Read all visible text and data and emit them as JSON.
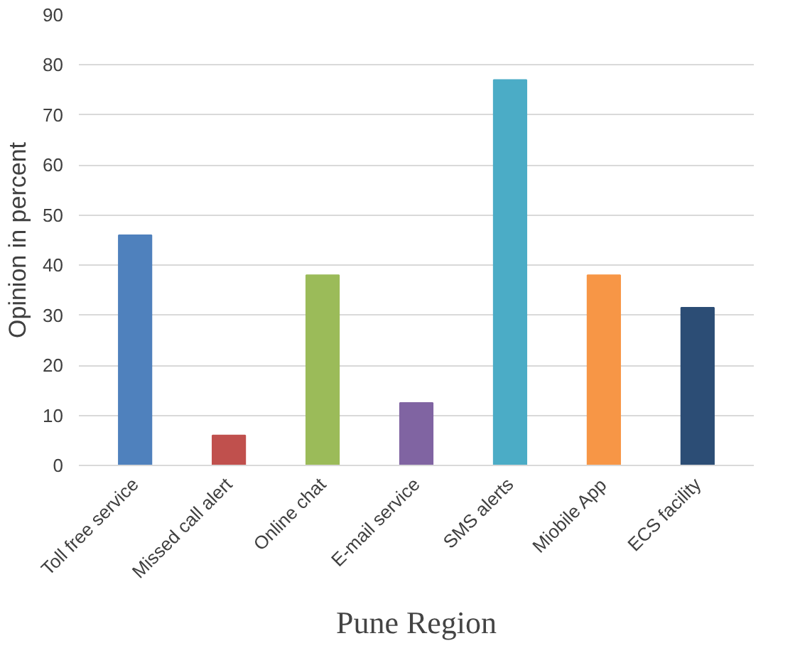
{
  "chart_data": {
    "type": "bar",
    "title": "Pune Region",
    "ylabel": "Opinion in percent",
    "categories": [
      "Toll free service",
      "Missed call alert",
      "Online chat",
      "E-mail service",
      "SMS alerts",
      "Miobile App",
      "ECS facility"
    ],
    "values": [
      46,
      6,
      38,
      12.5,
      77,
      38,
      31.5
    ],
    "colors": [
      "#4f81bd",
      "#c0504d",
      "#9bbb59",
      "#8064a2",
      "#4bacc6",
      "#f79646",
      "#2c4d75"
    ],
    "ylim": [
      0,
      90
    ],
    "yticks": [
      0,
      10,
      20,
      30,
      40,
      50,
      60,
      70,
      80,
      90
    ],
    "grid": "y"
  }
}
